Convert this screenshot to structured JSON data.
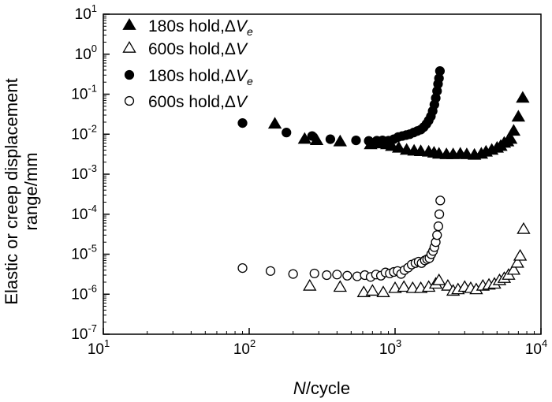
{
  "chart_data": {
    "type": "scatter",
    "title": "",
    "x_scale": "log",
    "y_scale": "log",
    "xlim": [
      10,
      10000
    ],
    "ylim": [
      1e-07,
      10
    ],
    "xlabel": {
      "italic": "N",
      "rest": "/cycle"
    },
    "ylabel": [
      "Elastic or creep displacement",
      "range/mm"
    ],
    "x_ticks": [
      {
        "value": 10,
        "base": "10",
        "exp": "1"
      },
      {
        "value": 100,
        "base": "10",
        "exp": "2"
      },
      {
        "value": 1000,
        "base": "10",
        "exp": "3"
      },
      {
        "value": 10000,
        "base": "10",
        "exp": "4"
      }
    ],
    "y_ticks": [
      {
        "value": 10,
        "base": "10",
        "exp": "1"
      },
      {
        "value": 1,
        "base": "10",
        "exp": "0"
      },
      {
        "value": 0.1,
        "base": "10",
        "exp": "-1"
      },
      {
        "value": 0.01,
        "base": "10",
        "exp": "-2"
      },
      {
        "value": 0.001,
        "base": "10",
        "exp": "-3"
      },
      {
        "value": 0.0001,
        "base": "10",
        "exp": "-4"
      },
      {
        "value": 1e-05,
        "base": "10",
        "exp": "-5"
      },
      {
        "value": 1e-06,
        "base": "10",
        "exp": "-6"
      },
      {
        "value": 1e-07,
        "base": "10",
        "exp": "-7"
      }
    ],
    "legend_position": "top-left",
    "series": [
      {
        "name": "180s hold,ΔVe",
        "label_main": "180s hold,Δ",
        "label_var": "V",
        "label_sub": "e",
        "marker": "triangle",
        "filled": true,
        "x": [
          150,
          240,
          290,
          420,
          680,
          790,
          880,
          950,
          1060,
          1200,
          1350,
          1500,
          1700,
          1850,
          2000,
          2250,
          2500,
          2800,
          3100,
          3500,
          3900,
          4200,
          4600,
          5000,
          5300,
          5600,
          5900,
          6200,
          6500,
          7000,
          7500
        ],
        "y": [
          0.018,
          0.0075,
          0.007,
          0.0065,
          0.0055,
          0.0058,
          0.0055,
          0.005,
          0.0045,
          0.004,
          0.0038,
          0.0037,
          0.0036,
          0.0034,
          0.0032,
          0.0031,
          0.0031,
          0.0032,
          0.0031,
          0.003,
          0.0032,
          0.0036,
          0.004,
          0.0045,
          0.005,
          0.006,
          0.0065,
          0.0075,
          0.012,
          0.027,
          0.08
        ]
      },
      {
        "name": "600s hold,ΔV",
        "label_main": "600s hold,Δ",
        "label_var": "V",
        "label_sub": "",
        "marker": "triangle",
        "filled": false,
        "x": [
          260,
          420,
          610,
          700,
          830,
          1000,
          1150,
          1320,
          1500,
          1700,
          1900,
          2000,
          2300,
          2500,
          2700,
          3000,
          3300,
          3600,
          4000,
          4400,
          4800,
          5200,
          5600,
          6000,
          6500,
          6900,
          7200,
          7600
        ],
        "y": [
          1.6e-06,
          1.5e-06,
          1.1e-06,
          1.2e-06,
          1.1e-06,
          1.4e-06,
          1.5e-06,
          1.4e-06,
          1.4e-06,
          1.5e-06,
          1.8e-06,
          2.2e-06,
          1.6e-06,
          1.2e-06,
          1.3e-06,
          1.5e-06,
          1.4e-06,
          1.3e-06,
          1.6e-06,
          1.7e-06,
          1.8e-06,
          2.2e-06,
          2.5e-06,
          3e-06,
          4e-06,
          6e-06,
          9e-06,
          4.2e-05
        ]
      },
      {
        "name": "180s hold,ΔVe",
        "label_main": "180s hold,Δ",
        "label_var": "V",
        "label_sub": "e",
        "marker": "circle",
        "filled": true,
        "x": [
          90,
          180,
          270,
          360,
          540,
          660,
          750,
          820,
          900,
          980,
          1050,
          1120,
          1190,
          1260,
          1340,
          1420,
          1500,
          1570,
          1640,
          1700,
          1760,
          1810,
          1860,
          1900,
          1940,
          1970,
          2000,
          2030
        ],
        "y": [
          0.019,
          0.011,
          0.009,
          0.0075,
          0.007,
          0.0068,
          0.0069,
          0.007,
          0.0069,
          0.0075,
          0.0085,
          0.009,
          0.0095,
          0.01,
          0.011,
          0.012,
          0.013,
          0.015,
          0.018,
          0.022,
          0.028,
          0.038,
          0.055,
          0.08,
          0.12,
          0.18,
          0.25,
          0.38
        ]
      },
      {
        "name": "600s hold,ΔV",
        "label_main": "600s hold,Δ",
        "label_var": "V",
        "label_sub": "",
        "marker": "circle",
        "filled": false,
        "x": [
          90,
          140,
          200,
          280,
          340,
          400,
          470,
          550,
          620,
          680,
          740,
          800,
          860,
          920,
          980,
          1040,
          1100,
          1160,
          1230,
          1300,
          1380,
          1450,
          1520,
          1600,
          1660,
          1720,
          1770,
          1820,
          1860,
          1900,
          1940,
          1980,
          2010,
          2040
        ],
        "y": [
          4.5e-06,
          3.8e-06,
          3.2e-06,
          3.3e-06,
          3e-06,
          3.1e-06,
          2.9e-06,
          2.8e-06,
          3e-06,
          2.7e-06,
          3.1e-06,
          2.9e-06,
          3.5e-06,
          3.3e-06,
          3.6e-06,
          3.8e-06,
          3.2e-06,
          4e-06,
          4.6e-06,
          5.5e-06,
          6e-06,
          6.5e-06,
          6e-06,
          7e-06,
          7.5e-06,
          8e-06,
          1e-05,
          1.2e-05,
          1.5e-05,
          2e-05,
          3e-05,
          5e-05,
          0.0001,
          0.00022
        ]
      }
    ]
  }
}
